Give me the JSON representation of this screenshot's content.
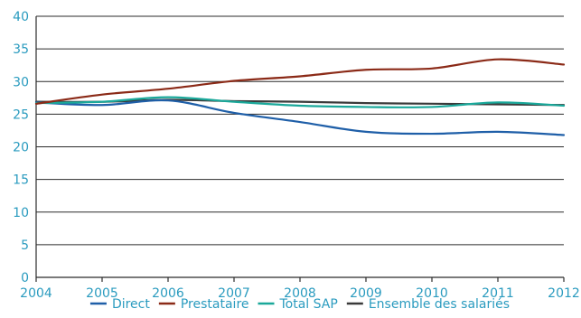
{
  "chart_data": {
    "type": "line",
    "x": [
      2004,
      2005,
      2006,
      2007,
      2008,
      2009,
      2010,
      2011,
      2012
    ],
    "ylim": [
      0,
      40
    ],
    "yticks": [
      0,
      5,
      10,
      15,
      20,
      25,
      30,
      35,
      40
    ],
    "grid": true,
    "legend_position": "bottom",
    "title": "",
    "xlabel": "",
    "ylabel": "",
    "series": [
      {
        "name": "Direct",
        "color": "#1f5fa8",
        "values": [
          26.8,
          26.4,
          27.1,
          25.2,
          23.8,
          22.3,
          22.0,
          22.3,
          21.8
        ]
      },
      {
        "name": "Prestataire",
        "color": "#8b2a17",
        "values": [
          26.6,
          28.0,
          28.9,
          30.1,
          30.8,
          31.8,
          32.0,
          33.4,
          32.6
        ]
      },
      {
        "name": "Total SAP",
        "color": "#1aa89a",
        "values": [
          26.7,
          26.9,
          27.6,
          26.9,
          26.3,
          26.1,
          26.1,
          26.8,
          26.3
        ]
      },
      {
        "name": "Ensemble des salariés",
        "color": "#3a3a3a",
        "values": [
          26.9,
          26.9,
          27.2,
          27.0,
          26.9,
          26.7,
          26.6,
          26.5,
          26.4
        ]
      }
    ]
  }
}
